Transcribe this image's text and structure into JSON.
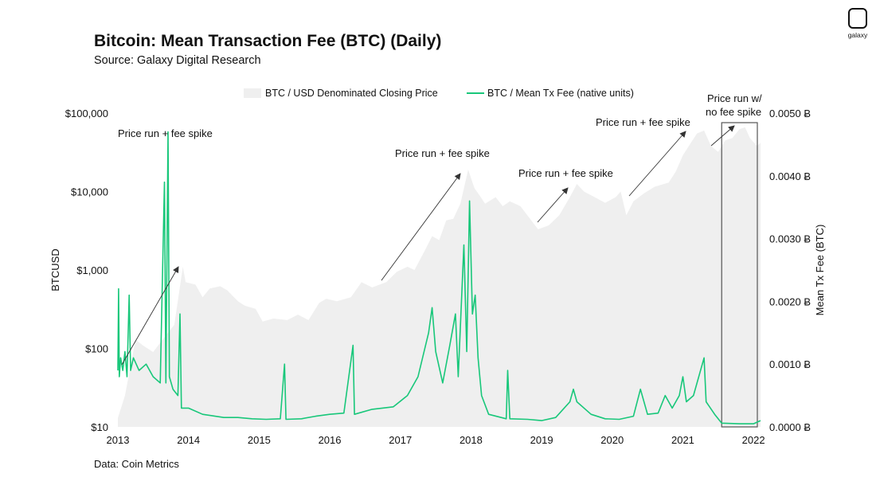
{
  "header": {
    "title": "Bitcoin: Mean Transaction Fee (BTC) (Daily)",
    "subtitle": "Source: Galaxy Digital Research"
  },
  "footer": {
    "note": "Data: Coin Metrics"
  },
  "logo": {
    "text": "galaxy"
  },
  "colors": {
    "price_area": "#efefef",
    "fee_line": "#18c77a",
    "text": "#111111",
    "annotation": "#333333"
  },
  "chart_data": {
    "type": "line",
    "y_left": {
      "label": "BTCUSD",
      "scale": "log",
      "range": [
        10,
        100000
      ],
      "ticks": [
        {
          "v": 10,
          "label": "$10"
        },
        {
          "v": 100,
          "label": "$100"
        },
        {
          "v": 1000,
          "label": "$1,000"
        },
        {
          "v": 10000,
          "label": "$10,000"
        },
        {
          "v": 100000,
          "label": "$100,000"
        }
      ]
    },
    "y_right": {
      "label": "Mean Tx Fee (BTC)",
      "range": [
        0,
        0.005
      ],
      "ticks": [
        {
          "v": 0,
          "label": "0.0000 Ƀ"
        },
        {
          "v": 0.001,
          "label": "0.0010 Ƀ"
        },
        {
          "v": 0.002,
          "label": "0.0020 Ƀ"
        },
        {
          "v": 0.003,
          "label": "0.0030 Ƀ"
        },
        {
          "v": 0.004,
          "label": "0.0040 Ƀ"
        },
        {
          "v": 0.005,
          "label": "0.0050 Ƀ"
        }
      ]
    },
    "x_axis": {
      "range": [
        2013.0,
        2022.1
      ],
      "ticks": [
        {
          "v": 2013,
          "label": "2013"
        },
        {
          "v": 2014,
          "label": "2014"
        },
        {
          "v": 2015,
          "label": "2015"
        },
        {
          "v": 2016,
          "label": "2016"
        },
        {
          "v": 2017,
          "label": "2017"
        },
        {
          "v": 2018,
          "label": "2018"
        },
        {
          "v": 2019,
          "label": "2019"
        },
        {
          "v": 2020,
          "label": "2020"
        },
        {
          "v": 2021,
          "label": "2021"
        },
        {
          "v": 2022,
          "label": "2022"
        }
      ]
    },
    "legend": {
      "position": "top-center"
    },
    "series": [
      {
        "name": "BTC / USD Denominated Closing Price",
        "type": "area",
        "axis": "left",
        "points": [
          [
            2013.0,
            13
          ],
          [
            2013.1,
            25
          ],
          [
            2013.25,
            130
          ],
          [
            2013.35,
            110
          ],
          [
            2013.5,
            90
          ],
          [
            2013.62,
            125
          ],
          [
            2013.8,
            200
          ],
          [
            2013.92,
            1100
          ],
          [
            2013.96,
            700
          ],
          [
            2014.1,
            650
          ],
          [
            2014.2,
            450
          ],
          [
            2014.3,
            580
          ],
          [
            2014.45,
            620
          ],
          [
            2014.55,
            550
          ],
          [
            2014.7,
            400
          ],
          [
            2014.8,
            350
          ],
          [
            2014.95,
            320
          ],
          [
            2015.05,
            220
          ],
          [
            2015.2,
            240
          ],
          [
            2015.4,
            230
          ],
          [
            2015.55,
            270
          ],
          [
            2015.7,
            230
          ],
          [
            2015.85,
            380
          ],
          [
            2015.95,
            430
          ],
          [
            2016.1,
            400
          ],
          [
            2016.3,
            450
          ],
          [
            2016.45,
            700
          ],
          [
            2016.6,
            600
          ],
          [
            2016.8,
            700
          ],
          [
            2016.95,
            950
          ],
          [
            2017.1,
            1100
          ],
          [
            2017.2,
            1000
          ],
          [
            2017.35,
            1800
          ],
          [
            2017.45,
            2700
          ],
          [
            2017.55,
            2400
          ],
          [
            2017.65,
            4300
          ],
          [
            2017.75,
            4500
          ],
          [
            2017.85,
            7000
          ],
          [
            2017.96,
            19000
          ],
          [
            2018.05,
            11000
          ],
          [
            2018.12,
            9000
          ],
          [
            2018.2,
            7000
          ],
          [
            2018.35,
            8500
          ],
          [
            2018.45,
            6500
          ],
          [
            2018.55,
            7500
          ],
          [
            2018.7,
            6500
          ],
          [
            2018.88,
            4000
          ],
          [
            2018.95,
            3300
          ],
          [
            2019.1,
            3700
          ],
          [
            2019.25,
            5000
          ],
          [
            2019.4,
            8500
          ],
          [
            2019.5,
            12500
          ],
          [
            2019.6,
            10000
          ],
          [
            2019.75,
            8500
          ],
          [
            2019.9,
            7200
          ],
          [
            2020.05,
            8500
          ],
          [
            2020.12,
            10000
          ],
          [
            2020.2,
            5000
          ],
          [
            2020.3,
            7500
          ],
          [
            2020.45,
            9500
          ],
          [
            2020.6,
            11500
          ],
          [
            2020.8,
            13000
          ],
          [
            2020.9,
            18000
          ],
          [
            2021.0,
            29000
          ],
          [
            2021.1,
            40000
          ],
          [
            2021.2,
            55000
          ],
          [
            2021.3,
            60000
          ],
          [
            2021.4,
            38000
          ],
          [
            2021.5,
            32000
          ],
          [
            2021.6,
            45000
          ],
          [
            2021.7,
            48000
          ],
          [
            2021.8,
            62000
          ],
          [
            2021.88,
            66000
          ],
          [
            2021.95,
            48000
          ],
          [
            2022.05,
            38000
          ],
          [
            2022.1,
            42000
          ]
        ]
      },
      {
        "name": "BTC / Mean Tx Fee (native units)",
        "type": "line",
        "axis": "right",
        "points": [
          [
            2013.0,
            0.0009
          ],
          [
            2013.01,
            0.0022
          ],
          [
            2013.02,
            0.0008
          ],
          [
            2013.04,
            0.0011
          ],
          [
            2013.07,
            0.0009
          ],
          [
            2013.1,
            0.0012
          ],
          [
            2013.13,
            0.0008
          ],
          [
            2013.16,
            0.0021
          ],
          [
            2013.18,
            0.0009
          ],
          [
            2013.22,
            0.0011
          ],
          [
            2013.3,
            0.0009
          ],
          [
            2013.4,
            0.001
          ],
          [
            2013.5,
            0.0008
          ],
          [
            2013.6,
            0.0007
          ],
          [
            2013.66,
            0.0039
          ],
          [
            2013.68,
            0.0007
          ],
          [
            2013.71,
            0.0047
          ],
          [
            2013.73,
            0.0008
          ],
          [
            2013.78,
            0.0006
          ],
          [
            2013.85,
            0.0005
          ],
          [
            2013.88,
            0.0018
          ],
          [
            2013.9,
            0.0003
          ],
          [
            2014.0,
            0.0003
          ],
          [
            2014.2,
            0.0002
          ],
          [
            2014.5,
            0.00015
          ],
          [
            2014.7,
            0.00015
          ],
          [
            2014.9,
            0.00013
          ],
          [
            2015.1,
            0.00012
          ],
          [
            2015.3,
            0.00013
          ],
          [
            2015.36,
            0.001
          ],
          [
            2015.38,
            0.00012
          ],
          [
            2015.6,
            0.00013
          ],
          [
            2015.8,
            0.00017
          ],
          [
            2016.0,
            0.0002
          ],
          [
            2016.2,
            0.00022
          ],
          [
            2016.33,
            0.0013
          ],
          [
            2016.35,
            0.0002
          ],
          [
            2016.6,
            0.00028
          ],
          [
            2016.9,
            0.00032
          ],
          [
            2017.1,
            0.0005
          ],
          [
            2017.25,
            0.0008
          ],
          [
            2017.4,
            0.0015
          ],
          [
            2017.45,
            0.0019
          ],
          [
            2017.5,
            0.0012
          ],
          [
            2017.6,
            0.0007
          ],
          [
            2017.7,
            0.0013
          ],
          [
            2017.78,
            0.0018
          ],
          [
            2017.82,
            0.0008
          ],
          [
            2017.9,
            0.0029
          ],
          [
            2017.94,
            0.0012
          ],
          [
            2017.98,
            0.0036
          ],
          [
            2018.02,
            0.0018
          ],
          [
            2018.06,
            0.0021
          ],
          [
            2018.1,
            0.0011
          ],
          [
            2018.15,
            0.0005
          ],
          [
            2018.25,
            0.0002
          ],
          [
            2018.5,
            0.00013
          ],
          [
            2018.52,
            0.0009
          ],
          [
            2018.55,
            0.00013
          ],
          [
            2018.8,
            0.00012
          ],
          [
            2019.0,
            0.0001
          ],
          [
            2019.2,
            0.00015
          ],
          [
            2019.4,
            0.0004
          ],
          [
            2019.45,
            0.0006
          ],
          [
            2019.5,
            0.0004
          ],
          [
            2019.7,
            0.0002
          ],
          [
            2019.9,
            0.00013
          ],
          [
            2020.1,
            0.00012
          ],
          [
            2020.3,
            0.00017
          ],
          [
            2020.4,
            0.0006
          ],
          [
            2020.5,
            0.0002
          ],
          [
            2020.65,
            0.00022
          ],
          [
            2020.75,
            0.0005
          ],
          [
            2020.85,
            0.0003
          ],
          [
            2020.95,
            0.0005
          ],
          [
            2021.0,
            0.0008
          ],
          [
            2021.05,
            0.0004
          ],
          [
            2021.15,
            0.0005
          ],
          [
            2021.3,
            0.0011
          ],
          [
            2021.33,
            0.0004
          ],
          [
            2021.45,
            0.0002
          ],
          [
            2021.55,
            6e-05
          ],
          [
            2021.8,
            5e-05
          ],
          [
            2022.0,
            5e-05
          ],
          [
            2022.1,
            0.0001
          ]
        ]
      }
    ],
    "annotations": [
      {
        "text": "Price run + fee spike"
      },
      {
        "text": "Price run + fee spike"
      },
      {
        "text": "Price run + fee spike"
      },
      {
        "text": "Price run + fee spike"
      },
      {
        "lines": [
          "Price run w/",
          "no fee spike"
        ]
      }
    ]
  }
}
